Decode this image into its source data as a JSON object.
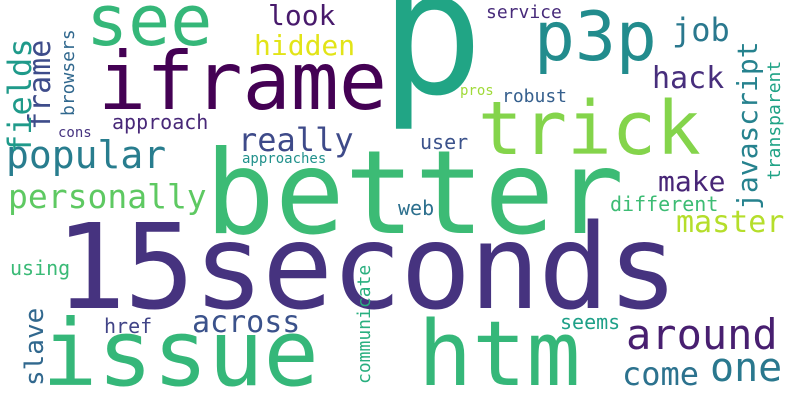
{
  "words": {
    "p": {
      "text": "p",
      "color": "#21a585"
    },
    "better": {
      "text": "better",
      "color": "#3cbb75"
    },
    "seconds15": {
      "text": "15seconds",
      "color": "#46337f"
    },
    "issue": {
      "text": "issue",
      "color": "#35b779"
    },
    "htm": {
      "text": "htm",
      "color": "#35b779"
    },
    "iframe": {
      "text": "iframe",
      "color": "#440154"
    },
    "trick": {
      "text": "trick",
      "color": "#84d44b"
    },
    "see": {
      "text": "see",
      "color": "#35b779"
    },
    "p3p": {
      "text": "p3p",
      "color": "#228c8d"
    },
    "popular": {
      "text": "popular",
      "color": "#287d8e"
    },
    "personally": {
      "text": "personally",
      "color": "#5ec962"
    },
    "around": {
      "text": "around",
      "color": "#481f70"
    },
    "one": {
      "text": "one",
      "color": "#2a788e"
    },
    "come": {
      "text": "come",
      "color": "#2c728e"
    },
    "across": {
      "text": "across",
      "color": "#3b528b"
    },
    "really": {
      "text": "really",
      "color": "#3e4a89"
    },
    "look": {
      "text": "look",
      "color": "#481a6c"
    },
    "hidden": {
      "text": "hidden",
      "color": "#e2e418"
    },
    "job": {
      "text": "job",
      "color": "#2a788e"
    },
    "hack": {
      "text": "hack",
      "color": "#472e7c"
    },
    "make": {
      "text": "make",
      "color": "#482677"
    },
    "master": {
      "text": "master",
      "color": "#b5de2b"
    },
    "javascript": {
      "text": "javascript",
      "color": "#26828e"
    },
    "transparent": {
      "text": "transparent",
      "color": "#20a386"
    },
    "frame": {
      "text": "frame",
      "color": "#3e4c8a"
    },
    "fields": {
      "text": "fields",
      "color": "#1f9a8a"
    },
    "browsers": {
      "text": "browsers",
      "color": "#31688e"
    },
    "approach": {
      "text": "approach",
      "color": "#482878"
    },
    "cons": {
      "text": "cons",
      "color": "#46337f"
    },
    "approaches": {
      "text": "approaches",
      "color": "#21918c"
    },
    "pros": {
      "text": "pros",
      "color": "#a0da39"
    },
    "robust": {
      "text": "robust",
      "color": "#355f8d"
    },
    "service": {
      "text": "service",
      "color": "#472a7a"
    },
    "user": {
      "text": "user",
      "color": "#3b528b"
    },
    "web": {
      "text": "web",
      "color": "#2d708e"
    },
    "different": {
      "text": "different",
      "color": "#3dbc74"
    },
    "slave": {
      "text": "slave",
      "color": "#31688e"
    },
    "using": {
      "text": "using",
      "color": "#3aba76"
    },
    "href": {
      "text": "href",
      "color": "#414487"
    },
    "communicate": {
      "text": "communicate",
      "color": "#29af7f"
    },
    "seems": {
      "text": "seems",
      "color": "#1fa088"
    }
  }
}
